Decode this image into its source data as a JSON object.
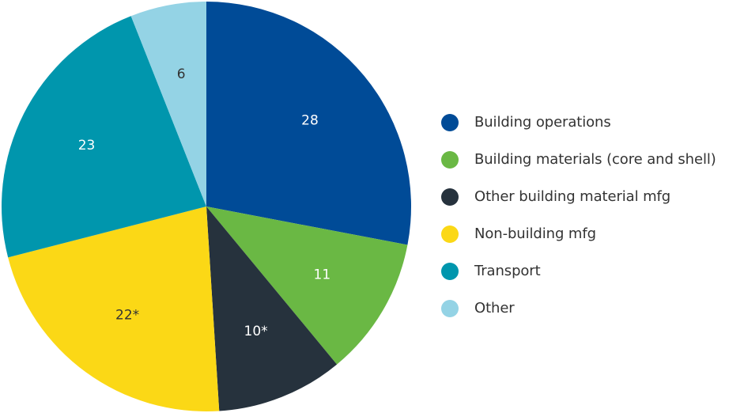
{
  "chart_data": {
    "type": "pie",
    "slices": [
      {
        "label": "Building operations",
        "value": 28,
        "display": "28",
        "color": "#004b97"
      },
      {
        "label": "Building materials (core and shell)",
        "value": 11,
        "display": "11",
        "color": "#6ab844"
      },
      {
        "label": "Other building material mfg",
        "value": 10,
        "display": "10*",
        "color": "#26323d"
      },
      {
        "label": "Non-building mfg",
        "value": 22,
        "display": "22*",
        "color": "#fbd816"
      },
      {
        "label": "Transport",
        "value": 23,
        "display": "23",
        "color": "#0096ad"
      },
      {
        "label": "Other",
        "value": 6,
        "display": "6",
        "color": "#94d3e5"
      }
    ],
    "legend_position": "right",
    "start": "top",
    "direction": "clockwise"
  },
  "legend": {
    "items": [
      {
        "label": "Building operations",
        "color": "#004b97"
      },
      {
        "label": "Building materials (core and shell)",
        "color": "#6ab844"
      },
      {
        "label": "Other building material mfg",
        "color": "#26323d"
      },
      {
        "label": "Non-building mfg",
        "color": "#fbd816"
      },
      {
        "label": "Transport",
        "color": "#0096ad"
      },
      {
        "label": "Other",
        "color": "#94d3e5"
      }
    ]
  }
}
